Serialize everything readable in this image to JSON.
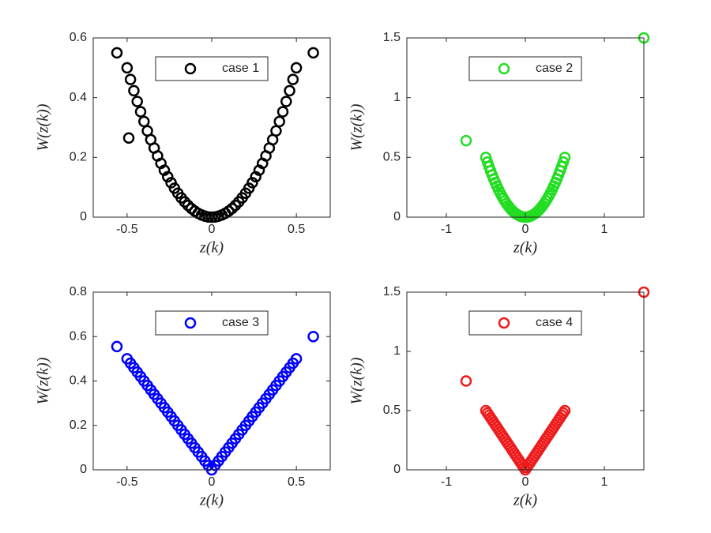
{
  "chart_data": [
    {
      "type": "scatter",
      "xlabel": "z(k)",
      "ylabel": "W(z(k))",
      "legend": "north",
      "xlim": [
        -0.7,
        0.7
      ],
      "ylim": [
        0,
        0.6
      ],
      "xticks": [
        -0.5,
        0,
        0.5
      ],
      "yticks": [
        0,
        0.2,
        0.4,
        0.6
      ],
      "x": [
        -0.5,
        -0.48,
        -0.46,
        -0.44,
        -0.42,
        -0.4,
        -0.38,
        -0.36,
        -0.34,
        -0.32,
        -0.3,
        -0.28,
        -0.26,
        -0.24,
        -0.22,
        -0.2,
        -0.18,
        -0.16,
        -0.14,
        -0.12,
        -0.1,
        -0.08,
        -0.06,
        -0.04,
        -0.02,
        0,
        0.02,
        0.04,
        0.06,
        0.08,
        0.1,
        0.12,
        0.14,
        0.16,
        0.18,
        0.2,
        0.22,
        0.24,
        0.26,
        0.28,
        0.3,
        0.32,
        0.34,
        0.36,
        0.38,
        0.4,
        0.42,
        0.44,
        0.46,
        0.48,
        0.5,
        -0.56,
        -0.49,
        0.6
      ],
      "series": [
        {
          "name": "case 1",
          "color": "#000000",
          "values": [
            0.5,
            0.4608,
            0.4232,
            0.3872,
            0.3528,
            0.32,
            0.2888,
            0.2592,
            0.2312,
            0.2048,
            0.18,
            0.1568,
            0.1352,
            0.1152,
            0.0968,
            0.08,
            0.0648,
            0.0512,
            0.0392,
            0.0288,
            0.02,
            0.0128,
            0.0072,
            0.0032,
            0.0008,
            0,
            0.0008,
            0.0032,
            0.0072,
            0.0128,
            0.02,
            0.0288,
            0.0392,
            0.0512,
            0.0648,
            0.08,
            0.0968,
            0.1152,
            0.1352,
            0.1568,
            0.18,
            0.2048,
            0.2312,
            0.2592,
            0.2888,
            0.32,
            0.3528,
            0.3872,
            0.4232,
            0.4608,
            0.5,
            0.55,
            0.265,
            0.55
          ]
        }
      ]
    },
    {
      "type": "scatter",
      "xlabel": "z(k)",
      "ylabel": "W(z(k))",
      "legend": "north",
      "xlim": [
        -1.5,
        1.5
      ],
      "ylim": [
        0,
        1.5
      ],
      "xticks": [
        -1,
        0,
        1
      ],
      "yticks": [
        0,
        0.5,
        1,
        1.5
      ],
      "x": [
        -0.5,
        -0.48,
        -0.46,
        -0.44,
        -0.42,
        -0.4,
        -0.38,
        -0.36,
        -0.34,
        -0.32,
        -0.3,
        -0.28,
        -0.26,
        -0.24,
        -0.22,
        -0.2,
        -0.18,
        -0.16,
        -0.14,
        -0.12,
        -0.1,
        -0.08,
        -0.06,
        -0.04,
        -0.02,
        0,
        0.02,
        0.04,
        0.06,
        0.08,
        0.1,
        0.12,
        0.14,
        0.16,
        0.18,
        0.2,
        0.22,
        0.24,
        0.26,
        0.28,
        0.3,
        0.32,
        0.34,
        0.36,
        0.38,
        0.4,
        0.42,
        0.44,
        0.46,
        0.48,
        0.5,
        -0.75,
        1.5
      ],
      "series": [
        {
          "name": "case 2",
          "color": "#22dd22",
          "values": [
            0.5,
            0.4608,
            0.4232,
            0.3872,
            0.3528,
            0.32,
            0.2888,
            0.2592,
            0.2312,
            0.2048,
            0.18,
            0.1568,
            0.1352,
            0.1152,
            0.0968,
            0.08,
            0.0648,
            0.0512,
            0.0392,
            0.0288,
            0.02,
            0.0128,
            0.0072,
            0.0032,
            0.0008,
            0,
            0.0008,
            0.0032,
            0.0072,
            0.0128,
            0.02,
            0.0288,
            0.0392,
            0.0512,
            0.0648,
            0.08,
            0.0968,
            0.1152,
            0.1352,
            0.1568,
            0.18,
            0.2048,
            0.2312,
            0.2592,
            0.2888,
            0.32,
            0.3528,
            0.3872,
            0.4232,
            0.4608,
            0.5,
            0.64,
            1.5
          ]
        }
      ]
    },
    {
      "type": "scatter",
      "xlabel": "z(k)",
      "ylabel": "W(z(k))",
      "legend": "north",
      "xlim": [
        -0.7,
        0.7
      ],
      "ylim": [
        0,
        0.8
      ],
      "xticks": [
        -0.5,
        0,
        0.5
      ],
      "yticks": [
        0,
        0.2,
        0.4,
        0.6,
        0.8
      ],
      "x": [
        -0.5,
        -0.48,
        -0.46,
        -0.44,
        -0.42,
        -0.4,
        -0.38,
        -0.36,
        -0.34,
        -0.32,
        -0.3,
        -0.28,
        -0.26,
        -0.24,
        -0.22,
        -0.2,
        -0.18,
        -0.16,
        -0.14,
        -0.12,
        -0.1,
        -0.08,
        -0.06,
        -0.04,
        -0.02,
        0,
        0.02,
        0.04,
        0.06,
        0.08,
        0.1,
        0.12,
        0.14,
        0.16,
        0.18,
        0.2,
        0.22,
        0.24,
        0.26,
        0.28,
        0.3,
        0.32,
        0.34,
        0.36,
        0.38,
        0.4,
        0.42,
        0.44,
        0.46,
        0.48,
        0.5,
        -0.56,
        0.6
      ],
      "series": [
        {
          "name": "case 3",
          "color": "#0000ff",
          "values": [
            0.5,
            0.48,
            0.46,
            0.44,
            0.42,
            0.4,
            0.38,
            0.36,
            0.34,
            0.32,
            0.3,
            0.28,
            0.26,
            0.24,
            0.22,
            0.2,
            0.18,
            0.16,
            0.14,
            0.12,
            0.1,
            0.08,
            0.06,
            0.04,
            0.02,
            0,
            0.02,
            0.04,
            0.06,
            0.08,
            0.1,
            0.12,
            0.14,
            0.16,
            0.18,
            0.2,
            0.22,
            0.24,
            0.26,
            0.28,
            0.3,
            0.32,
            0.34,
            0.36,
            0.38,
            0.4,
            0.42,
            0.44,
            0.46,
            0.48,
            0.5,
            0.555,
            0.6
          ]
        }
      ]
    },
    {
      "type": "scatter",
      "xlabel": "z(k)",
      "ylabel": "W(z(k))",
      "legend": "north",
      "xlim": [
        -1.5,
        1.5
      ],
      "ylim": [
        0,
        1.5
      ],
      "xticks": [
        -1,
        0,
        1
      ],
      "yticks": [
        0,
        0.5,
        1,
        1.5
      ],
      "x": [
        -0.5,
        -0.48,
        -0.46,
        -0.44,
        -0.42,
        -0.4,
        -0.38,
        -0.36,
        -0.34,
        -0.32,
        -0.3,
        -0.28,
        -0.26,
        -0.24,
        -0.22,
        -0.2,
        -0.18,
        -0.16,
        -0.14,
        -0.12,
        -0.1,
        -0.08,
        -0.06,
        -0.04,
        -0.02,
        0,
        0.02,
        0.04,
        0.06,
        0.08,
        0.1,
        0.12,
        0.14,
        0.16,
        0.18,
        0.2,
        0.22,
        0.24,
        0.26,
        0.28,
        0.3,
        0.32,
        0.34,
        0.36,
        0.38,
        0.4,
        0.42,
        0.44,
        0.46,
        0.48,
        0.5,
        -0.75,
        1.5
      ],
      "series": [
        {
          "name": "case 4",
          "color": "#ee1c1c",
          "values": [
            0.5,
            0.48,
            0.46,
            0.44,
            0.42,
            0.4,
            0.38,
            0.36,
            0.34,
            0.32,
            0.3,
            0.28,
            0.26,
            0.24,
            0.22,
            0.2,
            0.18,
            0.16,
            0.14,
            0.12,
            0.1,
            0.08,
            0.06,
            0.04,
            0.02,
            0,
            0.02,
            0.04,
            0.06,
            0.08,
            0.1,
            0.12,
            0.14,
            0.16,
            0.18,
            0.2,
            0.22,
            0.24,
            0.26,
            0.28,
            0.3,
            0.32,
            0.34,
            0.36,
            0.38,
            0.4,
            0.42,
            0.44,
            0.46,
            0.48,
            0.5,
            0.75,
            1.5
          ]
        }
      ]
    }
  ]
}
